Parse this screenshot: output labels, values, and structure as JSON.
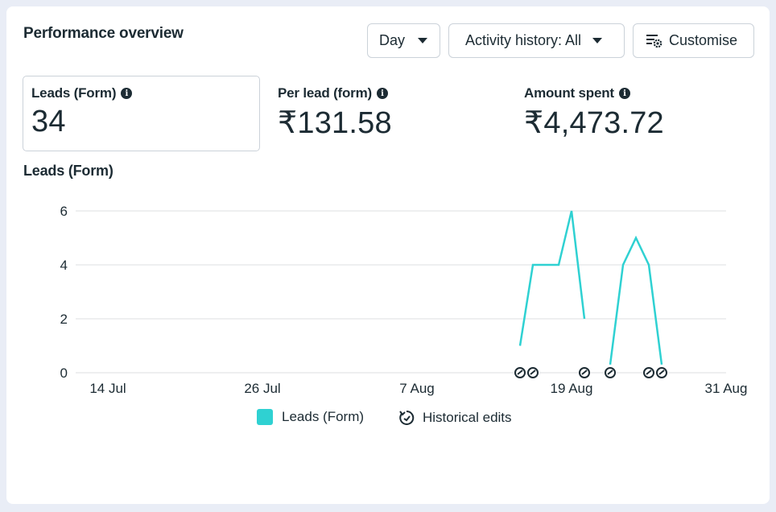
{
  "header": {
    "title": "Performance overview",
    "day_label": "Day",
    "activity_label": "Activity history: All",
    "customise_label": "Customise"
  },
  "metrics": [
    {
      "label": "Leads (Form)",
      "value": "34"
    },
    {
      "label": "Per lead (form)",
      "value": "₹131.58"
    },
    {
      "label": "Amount spent",
      "value": "₹4,473.72"
    }
  ],
  "chart": {
    "title": "Leads (Form)"
  },
  "legend": {
    "series_label": "Leads (Form)",
    "edits_label": "Historical edits"
  },
  "colors": {
    "series": "#2fd1d2",
    "text": "#1c2b33",
    "grid": "#dddfe2"
  },
  "chart_data": {
    "type": "line",
    "ylim": [
      0,
      6
    ],
    "y_ticks": [
      "0",
      "2",
      "4",
      "6"
    ],
    "x_ticks": [
      "14 Jul",
      "26 Jul",
      "7 Aug",
      "19 Aug",
      "31 Aug"
    ],
    "series": [
      {
        "name": "Leads (Form)",
        "segments": [
          [
            [
              "15 Aug",
              1
            ],
            [
              "16 Aug",
              4
            ],
            [
              "17 Aug",
              4
            ],
            [
              "18 Aug",
              4
            ],
            [
              "19 Aug",
              6
            ],
            [
              "20 Aug",
              2
            ]
          ],
          [
            [
              "22 Aug",
              0.3
            ],
            [
              "23 Aug",
              4
            ],
            [
              "24 Aug",
              5
            ],
            [
              "25 Aug",
              4
            ],
            [
              "26 Aug",
              0.3
            ]
          ]
        ]
      }
    ],
    "historical_edit_dates": [
      "15 Aug",
      "16 Aug",
      "20 Aug",
      "22 Aug",
      "25 Aug",
      "26 Aug"
    ]
  }
}
